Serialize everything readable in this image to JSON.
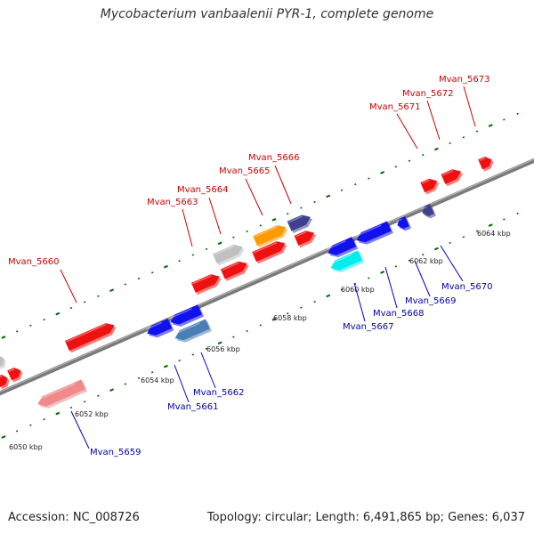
{
  "title": "Mycobacterium vanbaalenii PYR-1, complete genome",
  "accession": "Accession: NC_008726",
  "genome_info": "Topology: circular; Length: 6,491,865 bp; Genes: 6,037",
  "colors": {
    "backbone": "#888888",
    "forward_label": "#cc0000",
    "reverse_label": "#0000aa",
    "leader_forward": "#cc0000",
    "leader_reverse": "#0000cc",
    "tick": "#006600"
  },
  "kbp_ticks": [
    {
      "label": "6050 kbp",
      "kbp": 6050
    },
    {
      "label": "6052 kbp",
      "kbp": 6052
    },
    {
      "label": "6054 kbp",
      "kbp": 6054
    },
    {
      "label": "6056 kbp",
      "kbp": 6056
    },
    {
      "label": "6058 kbp",
      "kbp": 6058
    },
    {
      "label": "6060 kbp",
      "kbp": 6060
    },
    {
      "label": "6062 kbp",
      "kbp": 6062
    },
    {
      "label": "6064 kbp",
      "kbp": 6064
    }
  ],
  "genes": [
    {
      "name": "Mvan_5659",
      "strand": "reverse",
      "color": "#f08a8a"
    },
    {
      "name": "Mvan_5660",
      "strand": "forward",
      "color": "#ee1111"
    },
    {
      "name": "Mvan_5661",
      "strand": "reverse",
      "color": "#1111ee"
    },
    {
      "name": "Mvan_5662",
      "strand": "reverse",
      "color": "#4a7fb5"
    },
    {
      "name": "Mvan_5663",
      "strand": "forward",
      "color": "#ee1111"
    },
    {
      "name": "Mvan_5664",
      "strand": "forward",
      "color": "#c0c0c0"
    },
    {
      "name": "Mvan_5665",
      "strand": "forward",
      "color": "#ff9900"
    },
    {
      "name": "Mvan_5666",
      "strand": "forward",
      "color": "#3f3f8f"
    },
    {
      "name": "Mvan_5667",
      "strand": "reverse",
      "color": "#00eeee"
    },
    {
      "name": "Mvan_5668",
      "strand": "reverse",
      "color": "#1111ee"
    },
    {
      "name": "Mvan_5669",
      "strand": "reverse",
      "color": "#1111ee"
    },
    {
      "name": "Mvan_5670",
      "strand": "reverse",
      "color": "#3f3f8f"
    },
    {
      "name": "Mvan_5671",
      "strand": "forward",
      "color": "#ee1111"
    },
    {
      "name": "Mvan_5672",
      "strand": "forward",
      "color": "#ee1111"
    },
    {
      "name": "Mvan_5673",
      "strand": "forward",
      "color": "#ee1111"
    }
  ]
}
